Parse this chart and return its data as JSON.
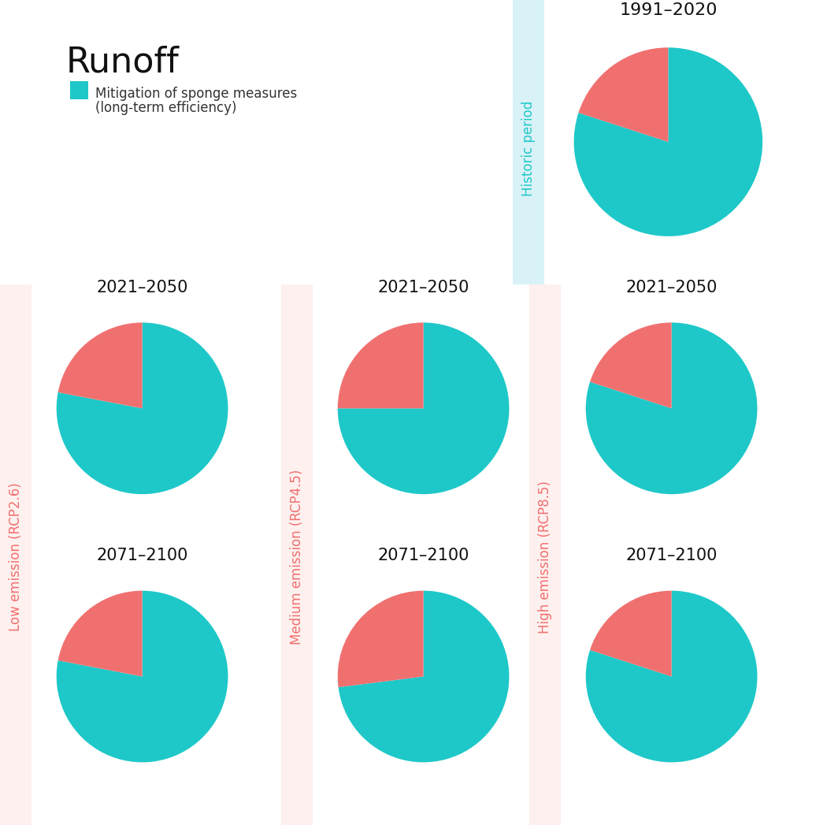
{
  "background_color": "#FFFFFF",
  "teal_color": "#1EC8C8",
  "salmon_color": "#F07070",
  "title": "Runoff",
  "legend_label_line1": "Mitigation of sponge measures",
  "legend_label_line2": "(long-term efficiency)",
  "historic_band_color": "#D8F2F7",
  "low_band_color": "#FEF0EE",
  "medium_band_color": "#FEF0EE",
  "high_band_color": "#FEF0EE",
  "historic_label": "Historic period",
  "historic_label_color": "#1EC8C8",
  "low_label": "Low emission (RCP2.6)",
  "low_label_color": "#F07070",
  "medium_label": "Medium emission (RCP4.5)",
  "medium_label_color": "#F07070",
  "high_label": "High emission (RCP8.5)",
  "high_label_color": "#F07070",
  "pies": {
    "historic_1991": {
      "teal": 80,
      "salmon": 20,
      "title": "1991–2020"
    },
    "low_2021": {
      "teal": 78,
      "salmon": 22,
      "title": "2021–2050"
    },
    "low_2071": {
      "teal": 78,
      "salmon": 22,
      "title": "2071–2100"
    },
    "medium_2021": {
      "teal": 75,
      "salmon": 25,
      "title": "2021–2050"
    },
    "medium_2071": {
      "teal": 73,
      "salmon": 27,
      "title": "2071–2100"
    },
    "high_2021": {
      "teal": 80,
      "salmon": 20,
      "title": "2021–2050"
    },
    "high_2071": {
      "teal": 80,
      "salmon": 20,
      "title": "2071–2100"
    }
  }
}
